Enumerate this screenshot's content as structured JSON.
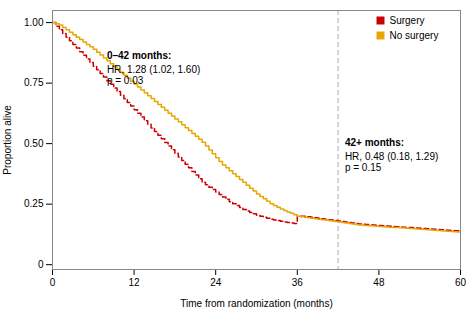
{
  "chart_data": {
    "type": "step",
    "xlabel": "Time from randomization (months)",
    "ylabel": "Proportion alive",
    "xlim": [
      0,
      60
    ],
    "ylim": [
      -0.02,
      1.05
    ],
    "xticks": [
      0,
      12,
      24,
      36,
      48,
      60
    ],
    "yticks": [
      0,
      0.25,
      {
        "value": 0.5,
        "label": "0.50"
      },
      0.75,
      {
        "value": 1,
        "label": "1.00"
      }
    ],
    "grid": false,
    "legend": "upper right",
    "x": [
      0,
      0.5,
      1,
      1.5,
      2,
      2.5,
      3,
      3.5,
      4,
      4.5,
      5,
      5.5,
      6,
      6.5,
      7,
      7.5,
      8,
      8.5,
      9,
      9.5,
      10,
      10.5,
      11,
      11.5,
      12,
      12.5,
      13,
      13.5,
      14,
      14.5,
      15,
      15.5,
      16,
      16.5,
      17,
      17.5,
      18,
      18.5,
      19,
      19.5,
      20,
      20.5,
      21,
      21.5,
      22,
      22.5,
      23,
      23.5,
      24,
      24.5,
      25,
      25.5,
      26,
      26.5,
      27,
      27.5,
      28,
      28.5,
      29,
      29.5,
      30,
      30.5,
      31,
      31.5,
      32,
      32.5,
      33,
      33.5,
      34,
      34.5,
      35,
      35.5,
      36,
      36.5,
      37,
      37.5,
      38,
      38.5,
      39,
      39.5,
      40,
      40.5,
      41,
      41.5,
      42,
      42.5,
      43,
      43.5,
      44,
      44.5,
      45,
      45.5,
      46,
      46.5,
      47,
      47.5,
      48,
      48.5,
      49,
      49.5,
      50,
      50.5,
      51,
      51.5,
      52,
      52.5,
      53,
      53.5,
      54,
      54.5,
      55,
      55.5,
      56,
      56.5,
      57,
      57.5,
      58,
      58.5,
      59,
      59.5,
      60
    ],
    "series": [
      {
        "name": "Surgery",
        "color": "#cc0000",
        "line_style": "dashed",
        "values": [
          1.0,
          0.985,
          0.97,
          0.955,
          0.94,
          0.925,
          0.91,
          0.895,
          0.88,
          0.865,
          0.85,
          0.835,
          0.82,
          0.805,
          0.79,
          0.775,
          0.76,
          0.745,
          0.73,
          0.715,
          0.7,
          0.685,
          0.67,
          0.655,
          0.64,
          0.625,
          0.61,
          0.595,
          0.58,
          0.565,
          0.55,
          0.535,
          0.52,
          0.505,
          0.49,
          0.475,
          0.46,
          0.445,
          0.43,
          0.415,
          0.4,
          0.385,
          0.37,
          0.355,
          0.34,
          0.33,
          0.32,
          0.31,
          0.3,
          0.29,
          0.28,
          0.27,
          0.26,
          0.252,
          0.244,
          0.236,
          0.228,
          0.222,
          0.216,
          0.21,
          0.204,
          0.2,
          0.196,
          0.192,
          0.188,
          0.185,
          0.182,
          0.179,
          0.176,
          0.174,
          0.172,
          0.17,
          0.2,
          0.2,
          0.2,
          0.198,
          0.196,
          0.194,
          0.192,
          0.19,
          0.188,
          0.186,
          0.184,
          0.182,
          0.18,
          0.178,
          0.176,
          0.174,
          0.172,
          0.17,
          0.168,
          0.167,
          0.166,
          0.165,
          0.164,
          0.163,
          0.162,
          0.161,
          0.16,
          0.159,
          0.158,
          0.157,
          0.156,
          0.155,
          0.154,
          0.153,
          0.152,
          0.151,
          0.15,
          0.149,
          0.148,
          0.147,
          0.146,
          0.145,
          0.144,
          0.143,
          0.142,
          0.141,
          0.14,
          0.14,
          0.14
        ]
      },
      {
        "name": "No surgery",
        "color": "#e6a800",
        "line_style": "solid",
        "values": [
          1.0,
          0.995,
          0.99,
          0.98,
          0.97,
          0.96,
          0.95,
          0.94,
          0.93,
          0.92,
          0.91,
          0.9,
          0.89,
          0.878,
          0.866,
          0.854,
          0.842,
          0.83,
          0.818,
          0.806,
          0.794,
          0.782,
          0.77,
          0.758,
          0.746,
          0.734,
          0.722,
          0.71,
          0.698,
          0.686,
          0.674,
          0.662,
          0.65,
          0.638,
          0.626,
          0.614,
          0.602,
          0.59,
          0.578,
          0.566,
          0.554,
          0.542,
          0.53,
          0.518,
          0.506,
          0.49,
          0.474,
          0.458,
          0.442,
          0.426,
          0.412,
          0.4,
          0.388,
          0.376,
          0.364,
          0.352,
          0.34,
          0.328,
          0.316,
          0.304,
          0.292,
          0.282,
          0.272,
          0.262,
          0.252,
          0.244,
          0.237,
          0.23,
          0.224,
          0.218,
          0.212,
          0.206,
          0.2,
          0.198,
          0.196,
          0.194,
          0.192,
          0.19,
          0.188,
          0.186,
          0.184,
          0.182,
          0.18,
          0.178,
          0.176,
          0.174,
          0.172,
          0.17,
          0.168,
          0.166,
          0.164,
          0.163,
          0.162,
          0.161,
          0.16,
          0.159,
          0.158,
          0.157,
          0.156,
          0.155,
          0.154,
          0.153,
          0.152,
          0.151,
          0.15,
          0.149,
          0.148,
          0.147,
          0.146,
          0.145,
          0.144,
          0.143,
          0.142,
          0.141,
          0.14,
          0.139,
          0.138,
          0.137,
          0.136,
          0.135,
          0.134
        ]
      }
    ],
    "reference_lines": [
      {
        "x": 42,
        "color": "#bbbbbb",
        "line_style": "dashed"
      }
    ],
    "annotations": [
      {
        "text": "0–42 months:\nHR, 1.28 (1.02, 1.60)\np = 0.03",
        "x": 8,
        "y": 0.88
      },
      {
        "text": "42+ months:\nHR, 0.48 (0.18, 1.29)\np = 0.15",
        "x": 43,
        "y": 0.52
      }
    ]
  }
}
